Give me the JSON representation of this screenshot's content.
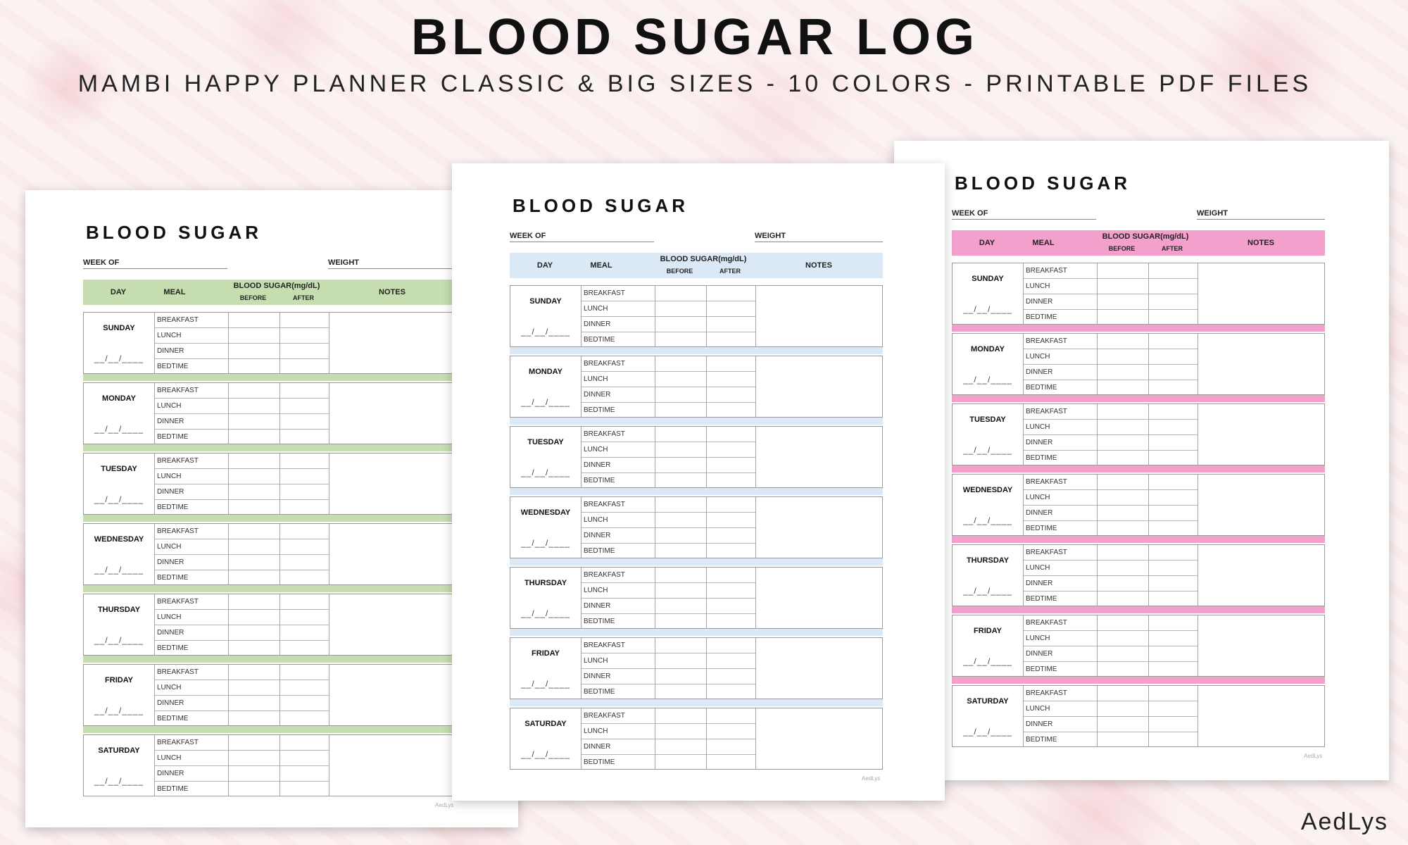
{
  "banner": {
    "title": "BLOOD SUGAR LOG",
    "subtitle": "MAMBI HAPPY PLANNER CLASSIC & BIG SIZES - 10 COLORS - PRINTABLE PDF FILES",
    "brand": "AedLys"
  },
  "template": {
    "title": "BLOOD SUGAR",
    "week_of_label": "WEEK OF",
    "weight_label": "WEIGHT",
    "columns": {
      "day": "DAY",
      "meal": "MEAL",
      "blood_sugar": "BLOOD SUGAR(mg/dL)",
      "before": "BEFORE",
      "after": "AFTER",
      "notes": "NOTES"
    },
    "days": [
      "SUNDAY",
      "MONDAY",
      "TUESDAY",
      "WEDNESDAY",
      "THURSDAY",
      "FRIDAY",
      "SATURDAY"
    ],
    "meals": [
      "BREAKFAST",
      "LUNCH",
      "DINNER",
      "BEDTIME"
    ],
    "date_placeholder": "__/__/____",
    "footer": "AedLys"
  },
  "pages": [
    {
      "name": "green",
      "accent": "#c6ddb0",
      "separator": "#c6ddb0"
    },
    {
      "name": "blue",
      "accent": "#dbe8f5",
      "separator": "#dbe8f5"
    },
    {
      "name": "pink",
      "accent": "#f4a0cc",
      "separator": "#f4a0cc"
    }
  ]
}
